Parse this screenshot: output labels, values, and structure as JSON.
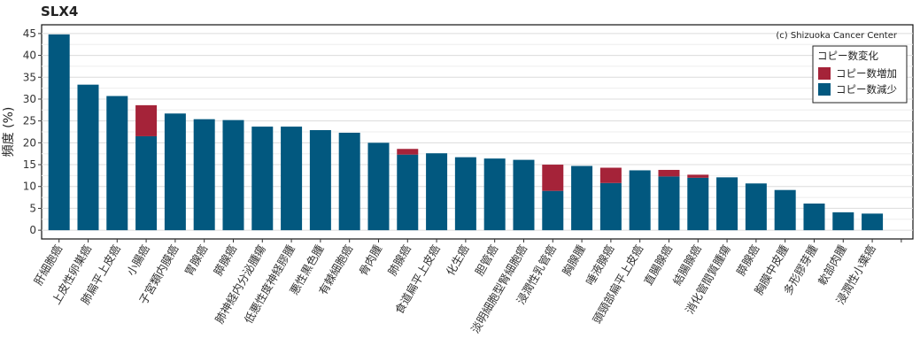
{
  "chart_data": {
    "type": "bar",
    "stacked": true,
    "title": "SLX4",
    "ylabel": "頻度 (%)",
    "xlabel": "",
    "ylim": [
      -2,
      47
    ],
    "yticks": [
      0,
      5,
      10,
      15,
      20,
      25,
      30,
      35,
      40,
      45
    ],
    "grid": true,
    "credit": "(c) Shizuoka Cancer Center",
    "legend": {
      "title": "コピー数変化",
      "placement": "top-right"
    },
    "categories": [
      "肝細胞癌",
      "上皮性卵巣癌",
      "肺扁平上皮癌",
      "小腸癌",
      "子宮類内膜癌",
      "胃腺癌",
      "膵腺癌",
      "肺神経内分泌腫瘍",
      "低悪性度神経膠腫",
      "悪性黒色腫",
      "有棘細胞癌",
      "骨肉腫",
      "肺腺癌",
      "食道扁平上皮癌",
      "化生癌",
      "胆管癌",
      "淡明細胞型腎細胞癌",
      "浸潤性乳管癌",
      "胸腺腫",
      "唾液腺癌",
      "頭頸部扁平上皮癌",
      "直腸腺癌",
      "結腸腺癌",
      "消化管間質腫瘍",
      "膵腺癌",
      "胸膜中皮腫",
      "多形膠芽腫",
      "軟部肉腫",
      "浸潤性小葉癌"
    ],
    "series": [
      {
        "name": "コピー数減少",
        "color": "#02587f",
        "values": [
          44.8,
          33.3,
          30.7,
          21.5,
          26.7,
          25.4,
          25.2,
          23.7,
          23.7,
          22.9,
          22.3,
          20.0,
          17.3,
          17.6,
          16.7,
          16.4,
          16.1,
          9.0,
          14.7,
          10.8,
          13.7,
          12.3,
          12.0,
          12.1,
          10.7,
          9.2,
          6.1,
          4.1,
          3.8
        ]
      },
      {
        "name": "コピー数増加",
        "color": "#a52339",
        "values": [
          0,
          0,
          0,
          7.1,
          0,
          0,
          0,
          0,
          0,
          0,
          0,
          0,
          1.3,
          0,
          0,
          0,
          0,
          6.0,
          0,
          3.5,
          0,
          1.5,
          0.7,
          0,
          0,
          0,
          0,
          0,
          0
        ]
      }
    ]
  }
}
